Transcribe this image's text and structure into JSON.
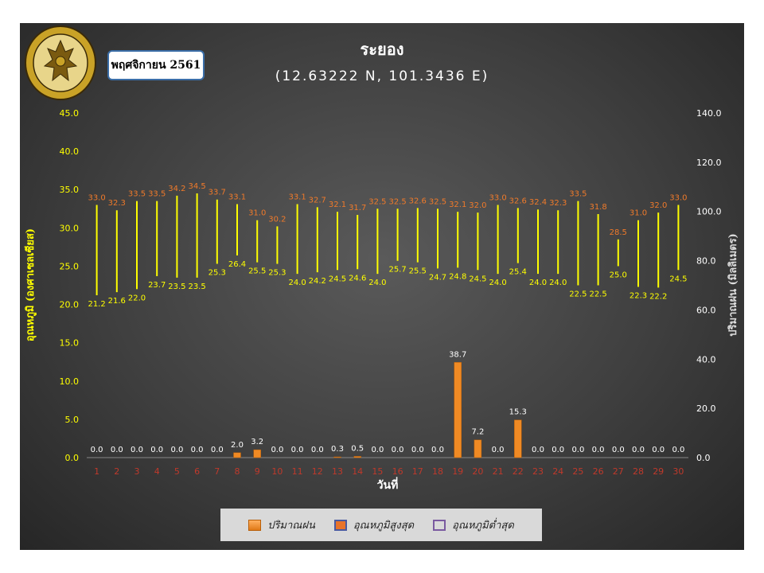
{
  "title": "ระยอง",
  "subtitle": "(12.63222 N, 101.3436 E)",
  "month_label": "พฤศจิกายน 2561",
  "logo_text": "กรมอุตุนิยมวิทยา METEOROLOGICAL DEPARTMENT",
  "colors": {
    "max_label": "#f07a2a",
    "min_label": "#ffff00",
    "temp_bar": "#ffff00",
    "rain_bar": "#f08a24",
    "axis_left": "#ffff00",
    "axis_right": "#ffffff",
    "x_ticks": "#c0392b"
  },
  "chart_data": {
    "type": "bar",
    "xlabel": "วันที่",
    "ylabel_left": "อุณหภูมิ (องศาเซลเซียส)",
    "ylabel_right": "ปริมาณฝน (มิลลิเมตร)",
    "ylim_left": [
      0,
      45
    ],
    "ylim_right": [
      0,
      140
    ],
    "yticks_left": [
      "0.0",
      "5.0",
      "10.0",
      "15.0",
      "20.0",
      "25.0",
      "30.0",
      "35.0",
      "40.0",
      "45.0"
    ],
    "yticks_right": [
      "0.0",
      "20.0",
      "40.0",
      "60.0",
      "80.0",
      "100.0",
      "120.0",
      "140.0"
    ],
    "categories": [
      "1",
      "2",
      "3",
      "4",
      "5",
      "6",
      "7",
      "8",
      "9",
      "10",
      "11",
      "12",
      "13",
      "14",
      "15",
      "16",
      "17",
      "18",
      "19",
      "20",
      "21",
      "22",
      "23",
      "24",
      "25",
      "26",
      "27",
      "28",
      "29",
      "30"
    ],
    "legend_position": "bottom",
    "series": [
      {
        "name": "ปริมาณฝน",
        "axis": "right",
        "values": [
          0.0,
          0.0,
          0.0,
          0.0,
          0.0,
          0.0,
          0.0,
          2.0,
          3.2,
          0.0,
          0.0,
          0.0,
          0.3,
          0.5,
          0.0,
          0.0,
          0.0,
          0.0,
          38.7,
          7.2,
          0.0,
          15.3,
          0.0,
          0.0,
          0.0,
          0.0,
          0.0,
          0.0,
          0.0,
          0.0
        ]
      },
      {
        "name": "อุณหภูมิสูงสุด",
        "axis": "left",
        "values": [
          33.0,
          32.3,
          33.5,
          33.5,
          34.2,
          34.5,
          33.7,
          33.1,
          31.0,
          30.2,
          33.1,
          32.7,
          32.1,
          31.7,
          32.5,
          32.5,
          32.6,
          32.5,
          32.1,
          32.0,
          33.0,
          32.6,
          32.4,
          32.3,
          33.5,
          31.8,
          28.5,
          31.0,
          32.0,
          33.0
        ]
      },
      {
        "name": "อุณหภูมิต่ำสุด",
        "axis": "left",
        "values": [
          21.2,
          21.6,
          22.0,
          23.7,
          23.5,
          23.5,
          25.3,
          26.4,
          25.5,
          25.3,
          24.0,
          24.2,
          24.5,
          24.6,
          24.0,
          25.7,
          25.5,
          24.7,
          24.8,
          24.5,
          24.0,
          25.4,
          24.0,
          24.0,
          22.5,
          22.5,
          25.0,
          22.3,
          22.2,
          24.5
        ]
      }
    ]
  }
}
